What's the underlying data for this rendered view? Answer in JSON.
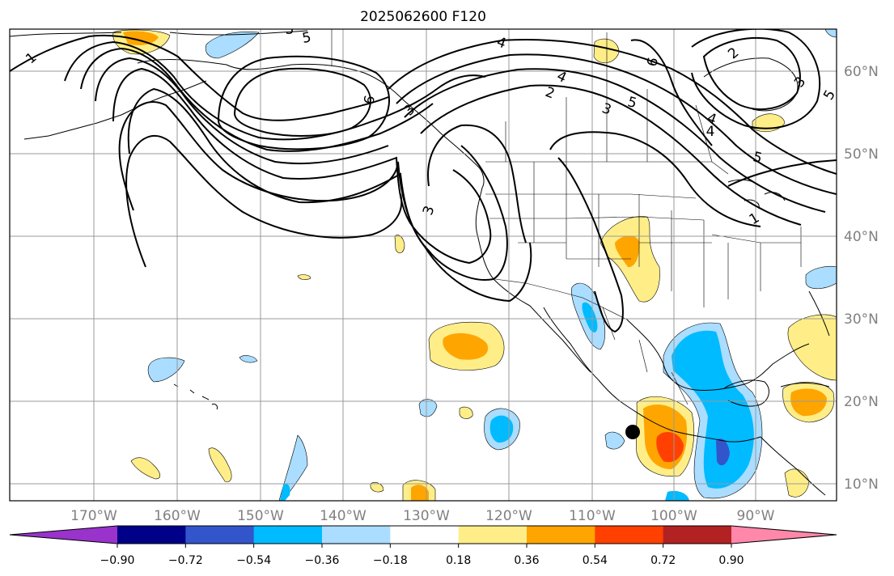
{
  "title": "2025062600 F120",
  "map": {
    "lon_labels": [
      "170°W",
      "160°W",
      "150°W",
      "140°W",
      "130°W",
      "120°W",
      "110°W",
      "100°W",
      "90°W"
    ],
    "lat_labels": [
      "60°N",
      "50°N",
      "40°N",
      "30°N",
      "20°N",
      "10°N"
    ],
    "contour_labels": [
      "1",
      "5",
      "4",
      "6",
      "4",
      "2",
      "3",
      "5",
      "6",
      "4",
      "5",
      "2",
      "3",
      "5",
      "4",
      "5",
      "1",
      "3",
      "3"
    ],
    "land_color": "#ffffff",
    "grid_color": "#999999",
    "contour_color": "#000000"
  },
  "colorbar": {
    "ticks": [
      "−0.90",
      "−0.72",
      "−0.54",
      "−0.36",
      "−0.18",
      "0.18",
      "0.36",
      "0.54",
      "0.72",
      "0.90"
    ],
    "colors": [
      "#9933cc",
      "#000088",
      "#3355cc",
      "#00bbff",
      "#aaddff",
      "#ffffff",
      "#ffee88",
      "#ffa500",
      "#ff4000",
      "#b22222",
      "#ff88aa"
    ]
  }
}
